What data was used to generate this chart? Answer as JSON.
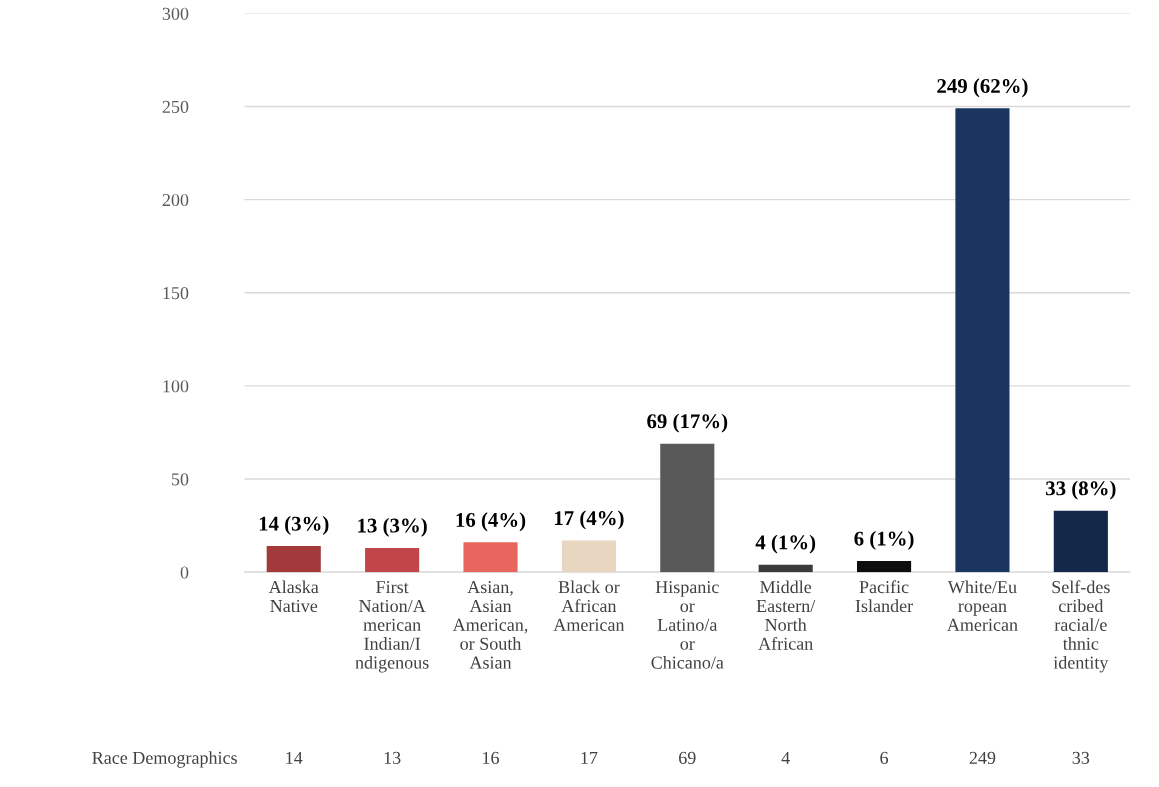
{
  "chart_data": {
    "type": "bar",
    "categories": [
      "Alaska Native",
      "First Nation/American Indian/Indigenous",
      "Asian, Asian American, or South Asian",
      "Black or African American",
      "Hispanic or Latino/a or Chicano/a",
      "Middle Eastern/North African",
      "Pacific Islander",
      "White/European American",
      "Self-described racial/ethnic identity"
    ],
    "series": [
      {
        "name": "Race Demographics",
        "values": [
          14,
          13,
          16,
          17,
          69,
          4,
          6,
          249,
          33
        ],
        "colors": [
          "#a3393b",
          "#c0464a",
          "#e9665e",
          "#e8d6c1",
          "#595959",
          "#3b3b3b",
          "#0d0d0d",
          "#1a3660",
          "#14284a"
        ],
        "value_labels": [
          "14 (3%)",
          "13 (3%)",
          "16 (4%)",
          "17 (4%)",
          "69 (17%)",
          "4 (1%)",
          "6 (1%)",
          "249 (62%)",
          "33 (8%)"
        ]
      }
    ],
    "annotations": [
      "14",
      "13",
      "16",
      "17",
      "69",
      "4",
      "6",
      "249",
      "33"
    ],
    "ylim": [
      0,
      300
    ],
    "yticks": [
      0,
      50,
      100,
      150,
      200,
      250,
      300
    ],
    "grid": "y",
    "data_labels": true
  }
}
